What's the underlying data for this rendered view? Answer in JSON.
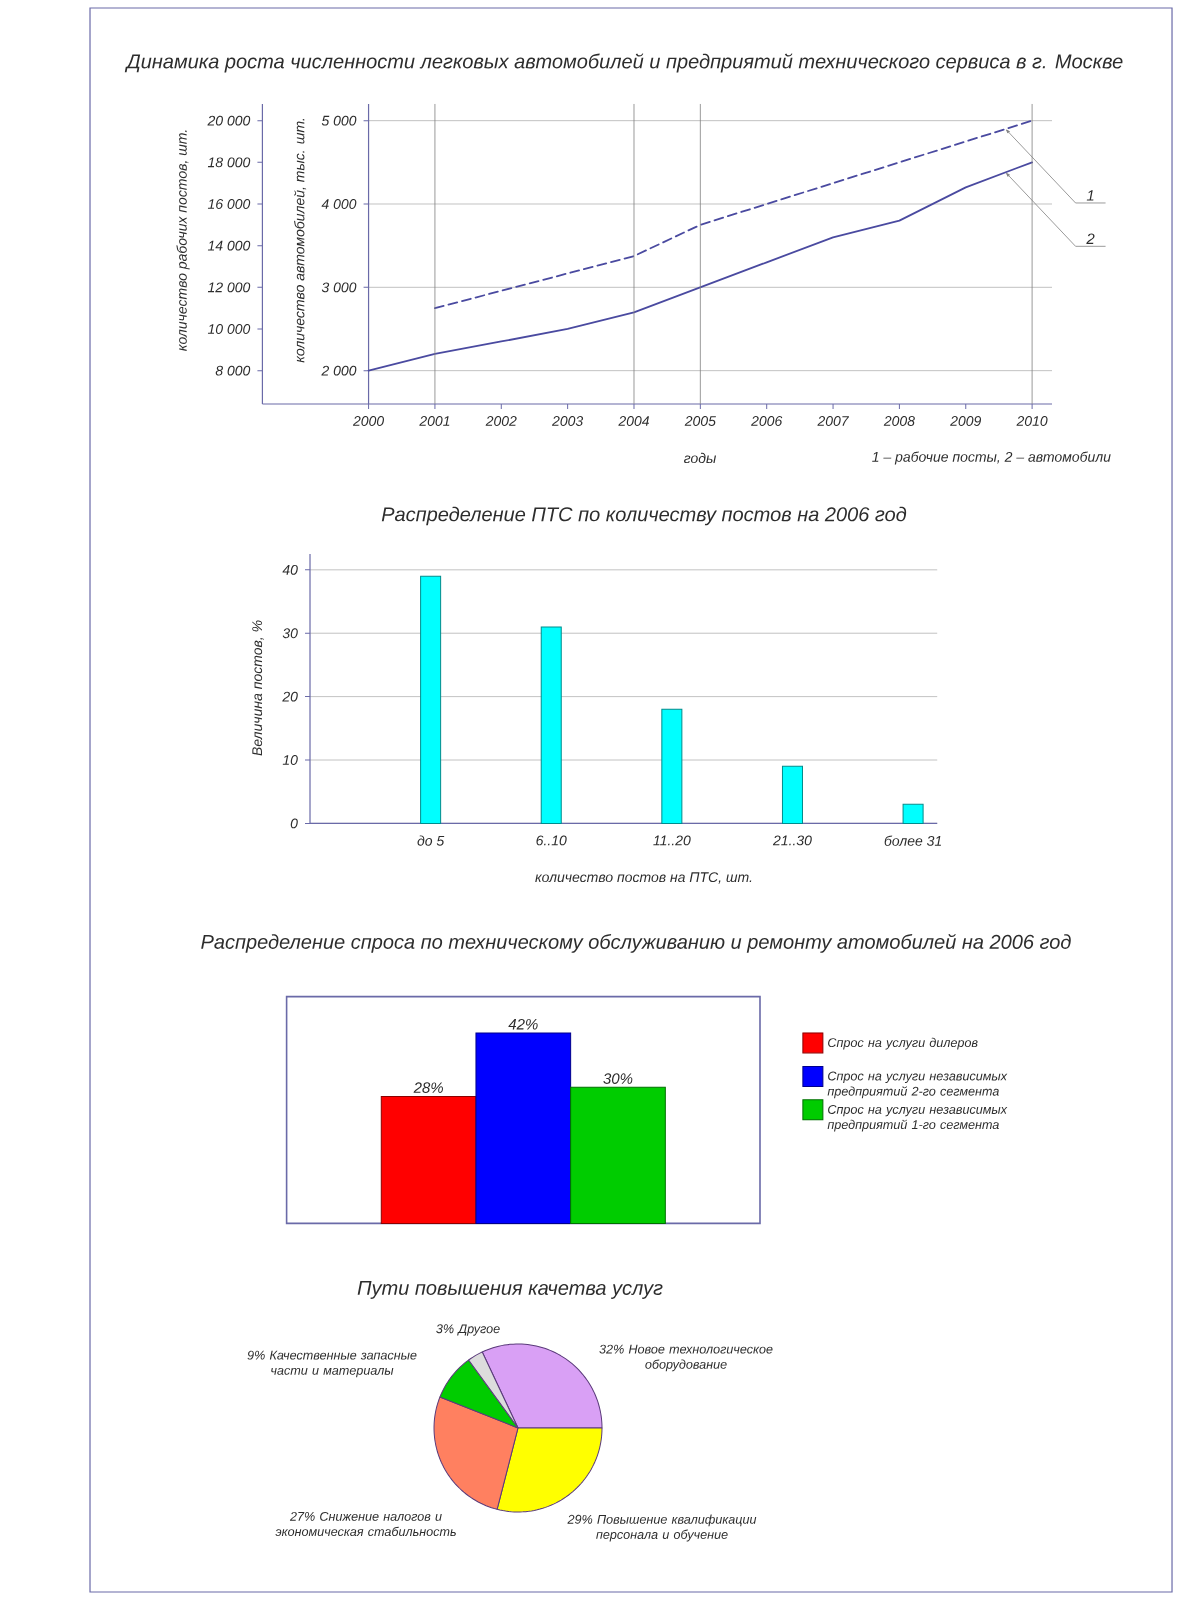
{
  "chart_data": [
    {
      "type": "line",
      "title": "Динамика роста численности легковых автомобилей и предприятий технического сервиса в г. Москве",
      "xlabel": "годы",
      "ylabel": "количество автомобилей, тыс. шт.",
      "y2label": "количество рабочих постов, шт.",
      "x": [
        2000,
        2001,
        2002,
        2003,
        2004,
        2005,
        2006,
        2007,
        2008,
        2009,
        2010
      ],
      "series": [
        {
          "name": "1",
          "color": "#4a4aa0",
          "axis": "y2",
          "line_style": "dashed",
          "x": [
            2001,
            2004,
            2005,
            2006,
            2008,
            2010
          ],
          "values": [
            11000,
            13500,
            15000,
            16000,
            18000,
            20000
          ]
        },
        {
          "name": "2",
          "color": "#4a4aa0",
          "line_style": "solid",
          "values": [
            2000,
            2200,
            2350,
            2500,
            2700,
            3000,
            3300,
            3600,
            3800,
            4200,
            4500
          ]
        }
      ],
      "xlim": [
        1998.4,
        2010.3
      ],
      "xticks": [
        2000,
        2001,
        2002,
        2003,
        2004,
        2005,
        2006,
        2007,
        2008,
        2009,
        2010
      ],
      "ylim": [
        1600,
        5200
      ],
      "yticks": [
        {
          "value": 2000,
          "label": "2 000"
        },
        {
          "value": 3000,
          "label": "3 000"
        },
        {
          "value": 4000,
          "label": "4 000"
        },
        {
          "value": 5000,
          "label": "5 000"
        }
      ],
      "y2lim": [
        6400,
        20800
      ],
      "y2ticks": [
        {
          "value": 8000,
          "label": "8 000"
        },
        {
          "value": 10000,
          "label": "10 000"
        },
        {
          "value": 12000,
          "label": "12 000"
        },
        {
          "value": 14000,
          "label": "14 000"
        },
        {
          "value": 16000,
          "label": "16 000"
        },
        {
          "value": 18000,
          "label": "18 000"
        },
        {
          "value": 20000,
          "label": "20 000"
        }
      ],
      "grid": "y",
      "ref_lines": [
        {
          "axis": "x",
          "value": 2001
        },
        {
          "axis": "x",
          "value": 2004
        },
        {
          "axis": "x",
          "value": 2005
        },
        {
          "axis": "x",
          "value": 2010
        }
      ],
      "annotations": [
        "1 – рабочие посты, 2 – автомобили"
      ]
    },
    {
      "type": "bar",
      "title": "Распределение ПТС по количеству постов на 2006 год",
      "xlabel": "количество постов на ПТС, шт.",
      "ylabel": "Величина постов, %",
      "categories": [
        "до 5",
        "6..10",
        "11..20",
        "21..30",
        "более 31"
      ],
      "values": [
        39,
        31,
        18,
        9,
        3
      ],
      "color": "#00ffff",
      "ylim": [
        0,
        42.5
      ],
      "yticks": [
        0,
        10,
        20,
        30,
        40
      ],
      "grid": "y"
    },
    {
      "type": "bar",
      "title": "Распределение спроса по техническому обслуживанию и ремонту атомобилей на 2006 год",
      "categories": [
        null
      ],
      "series": [
        {
          "name": "Спрос на услуги дилеров",
          "color": "#ff0000",
          "values": [
            28
          ],
          "value_labels": [
            "28%"
          ]
        },
        {
          "name": "Спрос на услуги независимых предприятий 2-го сегмента",
          "color": "#0000ff",
          "values": [
            42
          ],
          "value_labels": [
            "42%"
          ]
        },
        {
          "name": "Спрос на услуги независимых предприятий 1-го сегмента",
          "color": "#00cc00",
          "values": [
            30
          ],
          "value_labels": [
            "30%"
          ]
        }
      ],
      "ylim": [
        0,
        50
      ],
      "legend": "right"
    },
    {
      "type": "pie",
      "title": "Пути повышения качетва услуг",
      "categories": [
        "Новое технологическое оборудование",
        "Повышение квалификации персонала и обучение",
        "Снижение налогов и экономическая стабильность",
        "Качественные запасные части и материалы",
        "Другое"
      ],
      "values": [
        32,
        29,
        27,
        9,
        3
      ],
      "value_labels": [
        "32%",
        "29%",
        "27%",
        "9%",
        "3%"
      ],
      "colors": [
        "#d9a0f5",
        "#ffff00",
        "#ff8060",
        "#00cc00",
        "#dcdcdc"
      ]
    }
  ]
}
